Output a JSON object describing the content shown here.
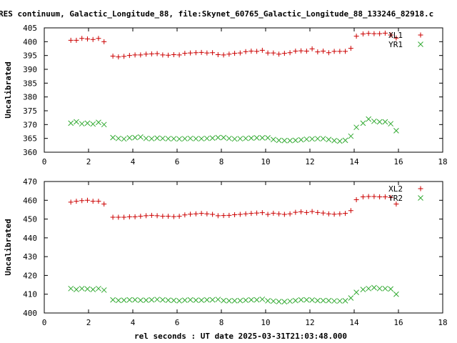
{
  "title": "RES continuum, Galactic_Longitude_88, file:Skynet_60765_Galactic_Longitude_88_133246_82918.c",
  "xlabel": "rel seconds : UT date 2025-03-31T21:03:48.000",
  "colors": {
    "red": "#cc0000",
    "green": "#33aa33"
  },
  "chart_data": [
    {
      "type": "scatter",
      "ylabel": "Uncalibrated",
      "xlim": [
        0,
        18
      ],
      "ylim": [
        360,
        405
      ],
      "xticks": [
        0,
        2,
        4,
        6,
        8,
        10,
        12,
        14,
        16,
        18
      ],
      "yticks": [
        360,
        365,
        370,
        375,
        380,
        385,
        390,
        395,
        400,
        405
      ],
      "legend_position": "top-right",
      "grid": false,
      "series": [
        {
          "name": "XL1",
          "color": "#cc0000",
          "marker": "plus",
          "x": [
            1.2,
            1.45,
            1.7,
            1.95,
            2.2,
            2.45,
            2.7,
            3.1,
            3.35,
            3.6,
            3.85,
            4.1,
            4.35,
            4.6,
            4.85,
            5.1,
            5.35,
            5.6,
            5.85,
            6.1,
            6.35,
            6.6,
            6.85,
            7.1,
            7.35,
            7.6,
            7.85,
            8.1,
            8.35,
            8.6,
            8.85,
            9.1,
            9.35,
            9.6,
            9.85,
            10.1,
            10.35,
            10.6,
            10.85,
            11.1,
            11.35,
            11.6,
            11.85,
            12.1,
            12.35,
            12.6,
            12.85,
            13.1,
            13.35,
            13.6,
            13.85,
            14.1,
            14.4,
            14.65,
            14.9,
            15.15,
            15.4,
            15.65,
            15.9
          ],
          "y": [
            400.5,
            400.5,
            401.2,
            401.0,
            400.8,
            401.2,
            400.0,
            394.8,
            394.5,
            394.7,
            395.0,
            395.2,
            395.2,
            395.5,
            395.6,
            395.7,
            395.2,
            395.1,
            395.3,
            395.2,
            395.8,
            395.9,
            396.0,
            396.1,
            395.9,
            396.0,
            395.3,
            395.2,
            395.5,
            395.8,
            395.9,
            396.4,
            396.6,
            396.5,
            396.9,
            395.9,
            395.9,
            395.5,
            395.8,
            396.0,
            396.6,
            396.7,
            396.6,
            397.4,
            396.3,
            396.6,
            396.0,
            396.5,
            396.5,
            396.5,
            397.6,
            402.0,
            402.8,
            403.0,
            402.9,
            402.9,
            403.1,
            402.4,
            401.3
          ]
        },
        {
          "name": "YR1",
          "color": "#33aa33",
          "marker": "cross",
          "x": [
            1.2,
            1.45,
            1.7,
            1.95,
            2.2,
            2.45,
            2.7,
            3.1,
            3.35,
            3.6,
            3.85,
            4.1,
            4.35,
            4.6,
            4.85,
            5.1,
            5.35,
            5.6,
            5.85,
            6.1,
            6.35,
            6.6,
            6.85,
            7.1,
            7.35,
            7.6,
            7.85,
            8.1,
            8.35,
            8.6,
            8.85,
            9.1,
            9.35,
            9.6,
            9.85,
            10.1,
            10.35,
            10.6,
            10.85,
            11.1,
            11.35,
            11.6,
            11.85,
            12.1,
            12.35,
            12.6,
            12.85,
            13.1,
            13.35,
            13.6,
            13.85,
            14.1,
            14.4,
            14.65,
            14.9,
            15.15,
            15.4,
            15.65,
            15.9
          ],
          "y": [
            370.5,
            371.0,
            370.3,
            370.5,
            370.2,
            370.8,
            370.0,
            365.3,
            365.0,
            364.8,
            365.2,
            365.3,
            365.5,
            365.0,
            364.9,
            365.1,
            365.0,
            364.9,
            364.9,
            364.8,
            364.9,
            365.0,
            364.9,
            364.9,
            365.0,
            365.1,
            365.3,
            365.3,
            365.0,
            364.8,
            364.9,
            365.0,
            365.1,
            365.2,
            365.2,
            365.2,
            364.6,
            364.3,
            364.2,
            364.2,
            364.3,
            364.5,
            364.7,
            364.8,
            364.9,
            364.9,
            364.6,
            364.2,
            364.0,
            364.3,
            365.8,
            369.0,
            370.5,
            372.0,
            371.2,
            371.0,
            371.0,
            370.3,
            367.8
          ]
        }
      ]
    },
    {
      "type": "scatter",
      "ylabel": "Uncalibrated",
      "xlim": [
        0,
        18
      ],
      "ylim": [
        400,
        470
      ],
      "xticks": [
        0,
        2,
        4,
        6,
        8,
        10,
        12,
        14,
        16,
        18
      ],
      "yticks": [
        400,
        410,
        420,
        430,
        440,
        450,
        460,
        470
      ],
      "legend_position": "top-right",
      "grid": false,
      "series": [
        {
          "name": "XL2",
          "color": "#cc0000",
          "marker": "plus",
          "x": [
            1.2,
            1.45,
            1.7,
            1.95,
            2.2,
            2.45,
            2.7,
            3.1,
            3.35,
            3.6,
            3.85,
            4.1,
            4.35,
            4.6,
            4.85,
            5.1,
            5.35,
            5.6,
            5.85,
            6.1,
            6.35,
            6.6,
            6.85,
            7.1,
            7.35,
            7.6,
            7.85,
            8.1,
            8.35,
            8.6,
            8.85,
            9.1,
            9.35,
            9.6,
            9.85,
            10.1,
            10.35,
            10.6,
            10.85,
            11.1,
            11.35,
            11.6,
            11.85,
            12.1,
            12.35,
            12.6,
            12.85,
            13.1,
            13.35,
            13.6,
            13.85,
            14.1,
            14.4,
            14.65,
            14.9,
            15.15,
            15.4,
            15.65,
            15.9
          ],
          "y": [
            459.0,
            459.5,
            459.8,
            460.0,
            459.5,
            459.5,
            458.0,
            451.0,
            451.0,
            451.0,
            451.2,
            451.2,
            451.5,
            451.8,
            452.0,
            451.8,
            451.5,
            451.5,
            451.3,
            451.5,
            452.2,
            452.6,
            452.8,
            453.0,
            452.8,
            452.5,
            451.8,
            451.9,
            452.0,
            452.3,
            452.5,
            452.8,
            453.0,
            453.2,
            453.4,
            452.5,
            453.1,
            452.8,
            452.5,
            452.8,
            453.6,
            453.9,
            453.5,
            454.0,
            453.5,
            453.2,
            452.8,
            452.6,
            452.8,
            453.0,
            454.5,
            460.3,
            461.8,
            462.0,
            462.0,
            461.8,
            461.8,
            461.5,
            458.0
          ]
        },
        {
          "name": "YR2",
          "color": "#33aa33",
          "marker": "cross",
          "x": [
            1.2,
            1.45,
            1.7,
            1.95,
            2.2,
            2.45,
            2.7,
            3.1,
            3.35,
            3.6,
            3.85,
            4.1,
            4.35,
            4.6,
            4.85,
            5.1,
            5.35,
            5.6,
            5.85,
            6.1,
            6.35,
            6.6,
            6.85,
            7.1,
            7.35,
            7.6,
            7.85,
            8.1,
            8.35,
            8.6,
            8.85,
            9.1,
            9.35,
            9.6,
            9.85,
            10.1,
            10.35,
            10.6,
            10.85,
            11.1,
            11.35,
            11.6,
            11.85,
            12.1,
            12.35,
            12.6,
            12.85,
            13.1,
            13.35,
            13.6,
            13.85,
            14.1,
            14.4,
            14.65,
            14.9,
            15.15,
            15.4,
            15.65,
            15.9
          ],
          "y": [
            413.0,
            412.5,
            413.0,
            412.8,
            412.5,
            413.0,
            412.2,
            407.0,
            406.7,
            406.8,
            407.0,
            407.0,
            406.8,
            406.8,
            407.0,
            407.2,
            407.0,
            406.8,
            406.7,
            406.5,
            406.8,
            407.0,
            406.8,
            406.8,
            407.0,
            407.0,
            407.2,
            406.6,
            406.5,
            406.5,
            406.6,
            406.8,
            407.0,
            407.0,
            407.3,
            406.5,
            406.3,
            406.1,
            406.0,
            406.3,
            406.6,
            407.0,
            407.0,
            406.9,
            406.6,
            406.6,
            406.6,
            406.4,
            406.4,
            406.5,
            408.0,
            411.0,
            412.5,
            413.0,
            413.5,
            413.0,
            413.0,
            412.8,
            410.0
          ]
        }
      ]
    }
  ]
}
